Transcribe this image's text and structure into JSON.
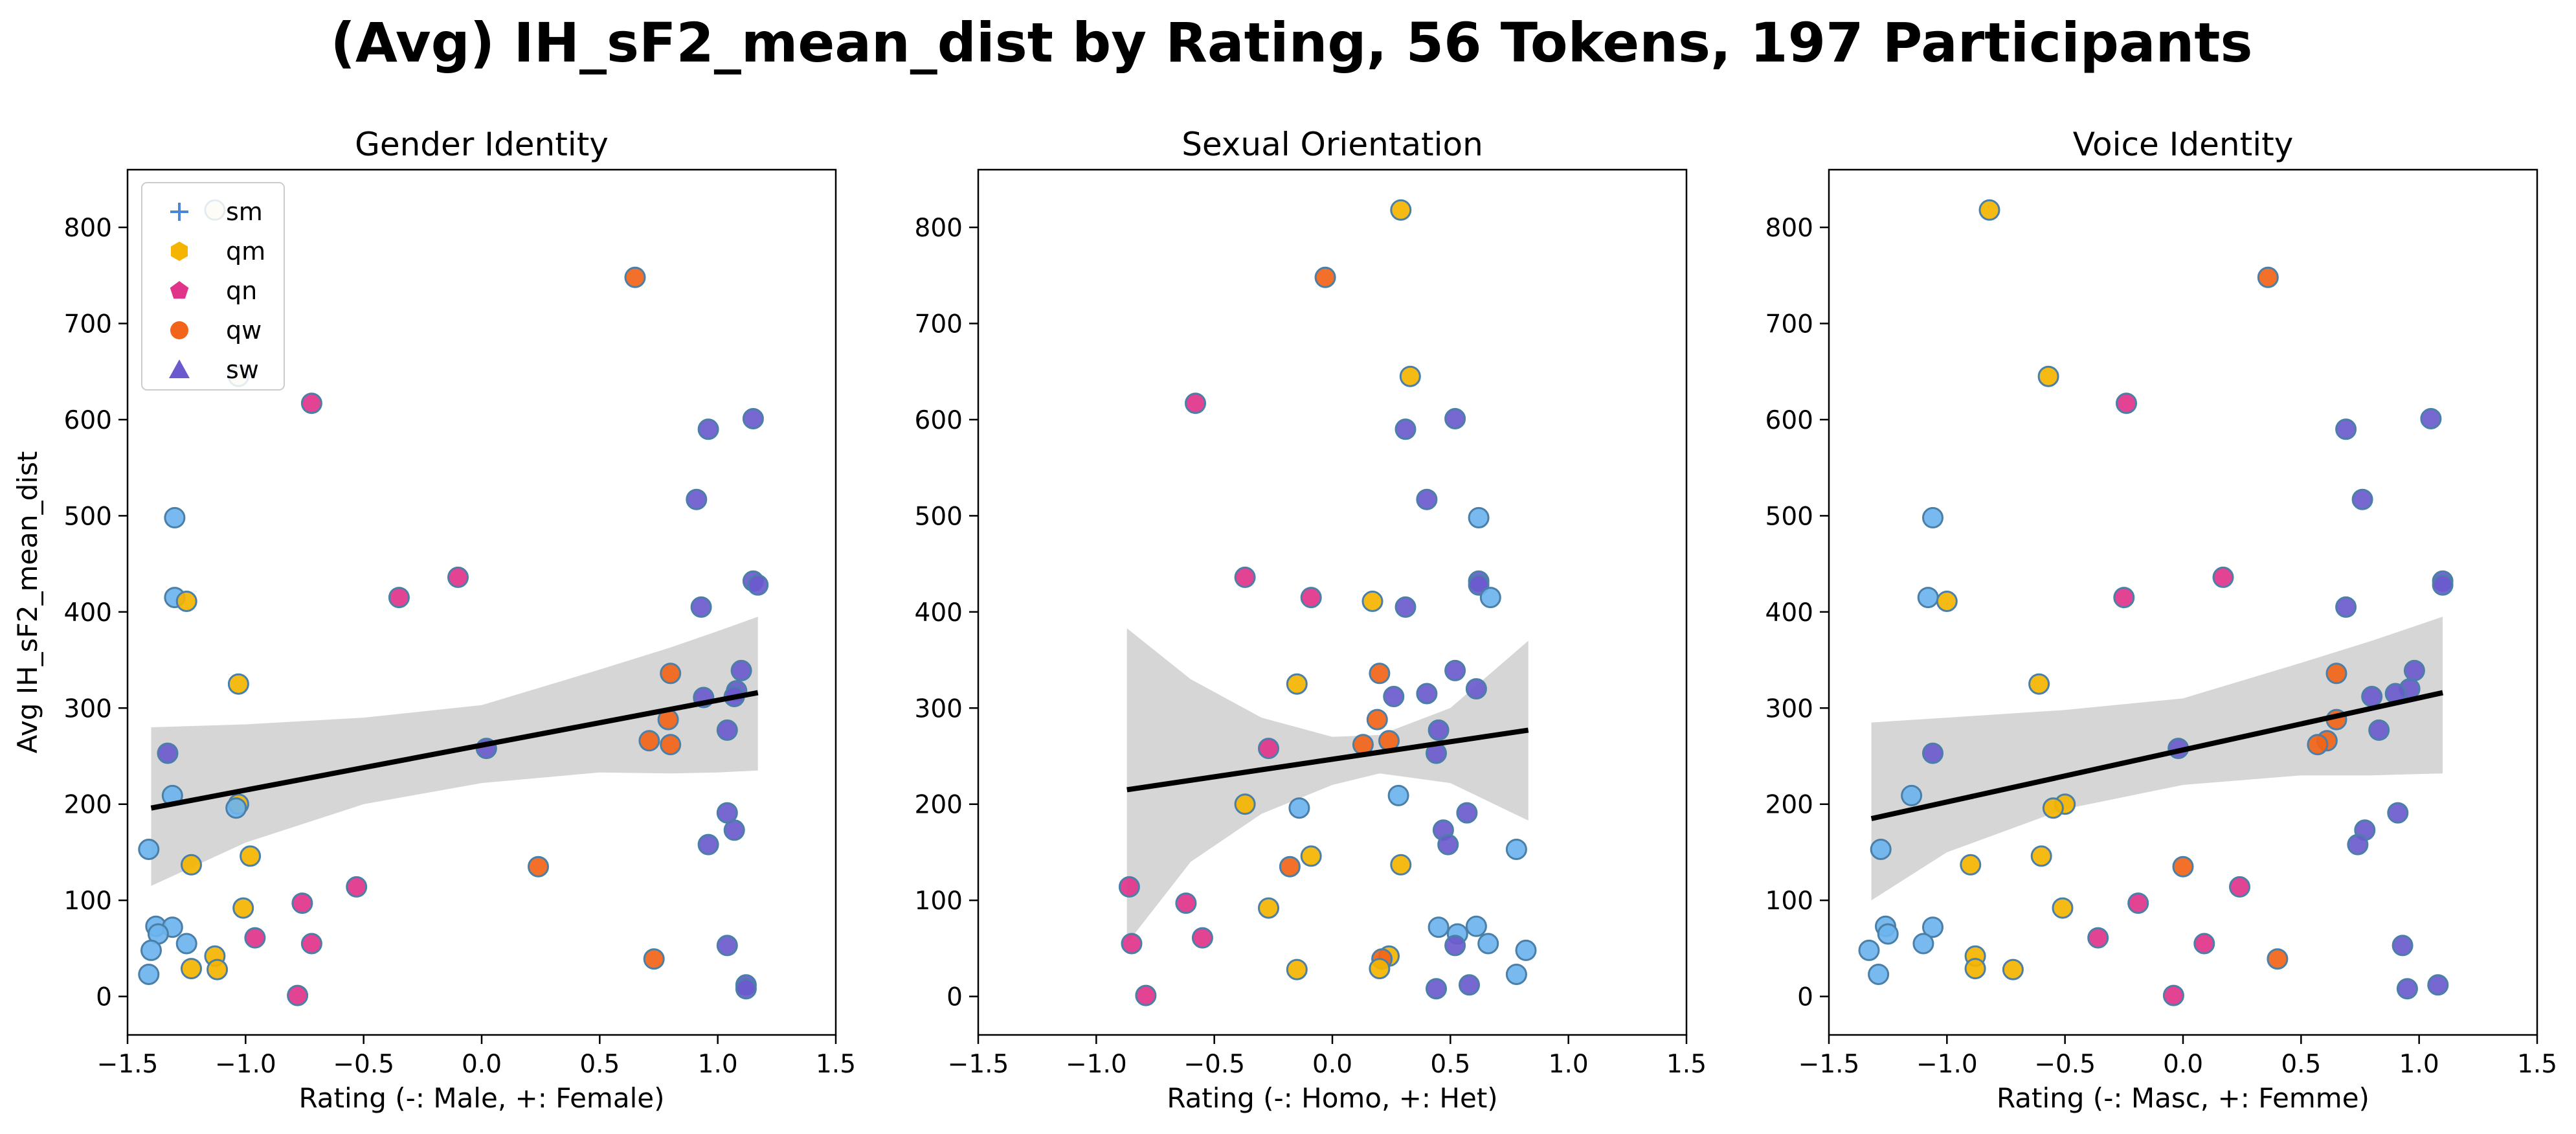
{
  "figure_title": "(Avg) IH_sF2_mean_dist by Rating, 56 Tokens, 197 Participants",
  "y_axis_label": "Avg IH_sF2_mean_dist",
  "legend": [
    {
      "label": "sm",
      "marker": "plus",
      "color": "#4a86d6"
    },
    {
      "label": "qm",
      "marker": "hexagon",
      "color": "#f4b400"
    },
    {
      "label": "qn",
      "marker": "pentagon",
      "color": "#e0338a"
    },
    {
      "label": "qw",
      "marker": "circle",
      "color": "#f26419"
    },
    {
      "label": "sw",
      "marker": "triangle",
      "color": "#6a5acd"
    }
  ],
  "point_edge_color": "#4a7fa8",
  "fit_line_color": "#000000",
  "ci_band_color": "#d6d6d6",
  "chart_data": [
    {
      "type": "scatter",
      "title": "Gender Identity",
      "xlabel": "Rating (-: Male, +: Female)",
      "ylabel": "Avg IH_sF2_mean_dist",
      "xlim": [
        -1.5,
        1.5
      ],
      "ylim": [
        -40,
        860
      ],
      "xticks": [
        -1.5,
        -1.0,
        -0.5,
        0.0,
        0.5,
        1.0,
        1.5
      ],
      "yticks": [
        0,
        100,
        200,
        300,
        400,
        500,
        600,
        700,
        800
      ],
      "legend_position": "upper-left",
      "fit": {
        "x": [
          -1.4,
          1.17
        ],
        "y": [
          196,
          316
        ]
      },
      "ci_band": {
        "x": [
          -1.4,
          -1.0,
          -0.5,
          0.0,
          0.5,
          0.8,
          1.0,
          1.17
        ],
        "upper": [
          280,
          283,
          290,
          303,
          340,
          363,
          380,
          395
        ],
        "lower": [
          115,
          160,
          200,
          222,
          233,
          232,
          233,
          235
        ]
      },
      "points": [
        {
          "x": -1.13,
          "y": 818,
          "color": "#f0e6c0"
        },
        {
          "x": -1.03,
          "y": 645,
          "color": "#f0e6c0"
        },
        {
          "x": 0.65,
          "y": 748,
          "color": "#f26419"
        },
        {
          "x": -0.72,
          "y": 617,
          "color": "#e0338a"
        },
        {
          "x": 0.96,
          "y": 590,
          "color": "#6a5acd"
        },
        {
          "x": 1.15,
          "y": 601,
          "color": "#6a5acd"
        },
        {
          "x": 0.91,
          "y": 517,
          "color": "#6a5acd"
        },
        {
          "x": -1.3,
          "y": 498,
          "color": "#6cb4ee"
        },
        {
          "x": -0.1,
          "y": 436,
          "color": "#e0338a"
        },
        {
          "x": -0.35,
          "y": 415,
          "color": "#e0338a"
        },
        {
          "x": -1.3,
          "y": 415,
          "color": "#6cb4ee"
        },
        {
          "x": -1.25,
          "y": 411,
          "color": "#f4b400"
        },
        {
          "x": 1.15,
          "y": 432,
          "color": "#6a5acd"
        },
        {
          "x": 1.17,
          "y": 428,
          "color": "#6a5acd"
        },
        {
          "x": 0.93,
          "y": 405,
          "color": "#6a5acd"
        },
        {
          "x": 0.8,
          "y": 336,
          "color": "#f26419"
        },
        {
          "x": 1.1,
          "y": 339,
          "color": "#6a5acd"
        },
        {
          "x": -1.03,
          "y": 325,
          "color": "#f4b400"
        },
        {
          "x": 0.94,
          "y": 311,
          "color": "#6a5acd"
        },
        {
          "x": 1.08,
          "y": 318,
          "color": "#6a5acd"
        },
        {
          "x": 1.07,
          "y": 312,
          "color": "#6a5acd"
        },
        {
          "x": 0.79,
          "y": 288,
          "color": "#f26419"
        },
        {
          "x": 1.04,
          "y": 277,
          "color": "#6a5acd"
        },
        {
          "x": 0.71,
          "y": 266,
          "color": "#f26419"
        },
        {
          "x": 0.8,
          "y": 262,
          "color": "#f26419"
        },
        {
          "x": 0.02,
          "y": 258,
          "color": "#6a5acd"
        },
        {
          "x": -1.33,
          "y": 253,
          "color": "#6a5acd"
        },
        {
          "x": -1.31,
          "y": 209,
          "color": "#6cb4ee"
        },
        {
          "x": -1.03,
          "y": 200,
          "color": "#f4b400"
        },
        {
          "x": -1.04,
          "y": 196,
          "color": "#6cb4ee"
        },
        {
          "x": 1.04,
          "y": 191,
          "color": "#6a5acd"
        },
        {
          "x": 1.07,
          "y": 173,
          "color": "#6a5acd"
        },
        {
          "x": 0.96,
          "y": 158,
          "color": "#6a5acd"
        },
        {
          "x": -1.41,
          "y": 153,
          "color": "#6cb4ee"
        },
        {
          "x": -0.98,
          "y": 146,
          "color": "#f4b400"
        },
        {
          "x": -1.23,
          "y": 137,
          "color": "#f4b400"
        },
        {
          "x": 0.24,
          "y": 135,
          "color": "#f26419"
        },
        {
          "x": -0.53,
          "y": 114,
          "color": "#e0338a"
        },
        {
          "x": -0.76,
          "y": 97,
          "color": "#e0338a"
        },
        {
          "x": -1.01,
          "y": 92,
          "color": "#f4b400"
        },
        {
          "x": -1.38,
          "y": 73,
          "color": "#6cb4ee"
        },
        {
          "x": -1.31,
          "y": 72,
          "color": "#6cb4ee"
        },
        {
          "x": -1.37,
          "y": 65,
          "color": "#6cb4ee"
        },
        {
          "x": -0.96,
          "y": 61,
          "color": "#e0338a"
        },
        {
          "x": -0.72,
          "y": 55,
          "color": "#e0338a"
        },
        {
          "x": -1.25,
          "y": 55,
          "color": "#6cb4ee"
        },
        {
          "x": 1.04,
          "y": 53,
          "color": "#6a5acd"
        },
        {
          "x": -1.4,
          "y": 48,
          "color": "#6cb4ee"
        },
        {
          "x": -1.13,
          "y": 42,
          "color": "#f4b400"
        },
        {
          "x": 0.73,
          "y": 39,
          "color": "#f26419"
        },
        {
          "x": -1.23,
          "y": 29,
          "color": "#f4b400"
        },
        {
          "x": -1.12,
          "y": 28,
          "color": "#f4b400"
        },
        {
          "x": -1.41,
          "y": 23,
          "color": "#6cb4ee"
        },
        {
          "x": 1.12,
          "y": 12,
          "color": "#6a5acd"
        },
        {
          "x": 1.12,
          "y": 8,
          "color": "#6a5acd"
        },
        {
          "x": -0.78,
          "y": 1,
          "color": "#e0338a"
        }
      ]
    },
    {
      "type": "scatter",
      "title": "Sexual Orientation",
      "xlabel": "Rating (-: Homo, +: Het)",
      "ylabel": "",
      "xlim": [
        -1.5,
        1.5
      ],
      "ylim": [
        -40,
        860
      ],
      "xticks": [
        -1.5,
        -1.0,
        -0.5,
        0.0,
        0.5,
        1.0,
        1.5
      ],
      "yticks": [
        0,
        100,
        200,
        300,
        400,
        500,
        600,
        700,
        800
      ],
      "fit": {
        "x": [
          -0.87,
          0.83
        ],
        "y": [
          215,
          277
        ]
      },
      "ci_band": {
        "x": [
          -0.87,
          -0.6,
          -0.3,
          0.0,
          0.2,
          0.5,
          0.83
        ],
        "upper": [
          383,
          330,
          290,
          270,
          272,
          300,
          370
        ],
        "lower": [
          55,
          140,
          190,
          220,
          232,
          222,
          183
        ]
      },
      "points": [
        {
          "x": 0.29,
          "y": 818,
          "color": "#f4b400"
        },
        {
          "x": -0.03,
          "y": 748,
          "color": "#f26419"
        },
        {
          "x": 0.33,
          "y": 645,
          "color": "#f4b400"
        },
        {
          "x": -0.58,
          "y": 617,
          "color": "#e0338a"
        },
        {
          "x": 0.52,
          "y": 601,
          "color": "#6a5acd"
        },
        {
          "x": 0.31,
          "y": 590,
          "color": "#6a5acd"
        },
        {
          "x": 0.4,
          "y": 517,
          "color": "#6a5acd"
        },
        {
          "x": 0.62,
          "y": 498,
          "color": "#6cb4ee"
        },
        {
          "x": -0.37,
          "y": 436,
          "color": "#e0338a"
        },
        {
          "x": 0.62,
          "y": 432,
          "color": "#6a5acd"
        },
        {
          "x": 0.62,
          "y": 428,
          "color": "#6a5acd"
        },
        {
          "x": 0.67,
          "y": 415,
          "color": "#6cb4ee"
        },
        {
          "x": -0.09,
          "y": 415,
          "color": "#e0338a"
        },
        {
          "x": 0.17,
          "y": 411,
          "color": "#f4b400"
        },
        {
          "x": 0.31,
          "y": 405,
          "color": "#6a5acd"
        },
        {
          "x": 0.52,
          "y": 339,
          "color": "#6a5acd"
        },
        {
          "x": 0.2,
          "y": 336,
          "color": "#f26419"
        },
        {
          "x": -0.15,
          "y": 325,
          "color": "#f4b400"
        },
        {
          "x": 0.61,
          "y": 320,
          "color": "#6a5acd"
        },
        {
          "x": 0.4,
          "y": 315,
          "color": "#6a5acd"
        },
        {
          "x": 0.26,
          "y": 312,
          "color": "#6a5acd"
        },
        {
          "x": 0.19,
          "y": 288,
          "color": "#f26419"
        },
        {
          "x": 0.45,
          "y": 277,
          "color": "#6a5acd"
        },
        {
          "x": 0.24,
          "y": 266,
          "color": "#f26419"
        },
        {
          "x": 0.13,
          "y": 262,
          "color": "#f26419"
        },
        {
          "x": -0.27,
          "y": 258,
          "color": "#e0338a"
        },
        {
          "x": 0.44,
          "y": 253,
          "color": "#6a5acd"
        },
        {
          "x": 0.28,
          "y": 209,
          "color": "#6cb4ee"
        },
        {
          "x": -0.37,
          "y": 200,
          "color": "#f4b400"
        },
        {
          "x": -0.14,
          "y": 196,
          "color": "#6cb4ee"
        },
        {
          "x": 0.57,
          "y": 191,
          "color": "#6a5acd"
        },
        {
          "x": 0.47,
          "y": 173,
          "color": "#6a5acd"
        },
        {
          "x": 0.49,
          "y": 158,
          "color": "#6a5acd"
        },
        {
          "x": 0.78,
          "y": 153,
          "color": "#6cb4ee"
        },
        {
          "x": -0.09,
          "y": 146,
          "color": "#f4b400"
        },
        {
          "x": 0.29,
          "y": 137,
          "color": "#f4b400"
        },
        {
          "x": -0.18,
          "y": 135,
          "color": "#f26419"
        },
        {
          "x": -0.86,
          "y": 114,
          "color": "#e0338a"
        },
        {
          "x": -0.62,
          "y": 97,
          "color": "#e0338a"
        },
        {
          "x": -0.27,
          "y": 92,
          "color": "#f4b400"
        },
        {
          "x": 0.61,
          "y": 73,
          "color": "#6cb4ee"
        },
        {
          "x": 0.45,
          "y": 72,
          "color": "#6cb4ee"
        },
        {
          "x": 0.53,
          "y": 65,
          "color": "#6cb4ee"
        },
        {
          "x": -0.55,
          "y": 61,
          "color": "#e0338a"
        },
        {
          "x": 0.66,
          "y": 55,
          "color": "#6cb4ee"
        },
        {
          "x": -0.85,
          "y": 55,
          "color": "#e0338a"
        },
        {
          "x": 0.52,
          "y": 53,
          "color": "#6a5acd"
        },
        {
          "x": 0.82,
          "y": 48,
          "color": "#6cb4ee"
        },
        {
          "x": 0.24,
          "y": 42,
          "color": "#f4b400"
        },
        {
          "x": 0.21,
          "y": 39,
          "color": "#f26419"
        },
        {
          "x": 0.2,
          "y": 29,
          "color": "#f4b400"
        },
        {
          "x": -0.15,
          "y": 28,
          "color": "#f4b400"
        },
        {
          "x": 0.78,
          "y": 23,
          "color": "#6cb4ee"
        },
        {
          "x": 0.58,
          "y": 12,
          "color": "#6a5acd"
        },
        {
          "x": 0.44,
          "y": 8,
          "color": "#6a5acd"
        },
        {
          "x": -0.79,
          "y": 1,
          "color": "#e0338a"
        }
      ]
    },
    {
      "type": "scatter",
      "title": "Voice Identity",
      "xlabel": "Rating (-: Masc, +: Femme)",
      "ylabel": "",
      "xlim": [
        -1.5,
        1.5
      ],
      "ylim": [
        -40,
        860
      ],
      "xticks": [
        -1.5,
        -1.0,
        -0.5,
        0.0,
        0.5,
        1.0,
        1.5
      ],
      "yticks": [
        0,
        100,
        200,
        300,
        400,
        500,
        600,
        700,
        800
      ],
      "fit": {
        "x": [
          -1.32,
          1.1
        ],
        "y": [
          185,
          316
        ]
      },
      "ci_band": {
        "x": [
          -1.32,
          -1.0,
          -0.5,
          0.0,
          0.5,
          0.8,
          1.1
        ],
        "upper": [
          285,
          290,
          298,
          310,
          347,
          370,
          395
        ],
        "lower": [
          100,
          150,
          195,
          220,
          230,
          230,
          232
        ]
      },
      "points": [
        {
          "x": -0.82,
          "y": 818,
          "color": "#f4b400"
        },
        {
          "x": 0.36,
          "y": 748,
          "color": "#f26419"
        },
        {
          "x": -0.57,
          "y": 645,
          "color": "#f4b400"
        },
        {
          "x": -0.24,
          "y": 617,
          "color": "#e0338a"
        },
        {
          "x": 1.05,
          "y": 601,
          "color": "#6a5acd"
        },
        {
          "x": 0.69,
          "y": 590,
          "color": "#6a5acd"
        },
        {
          "x": 0.76,
          "y": 517,
          "color": "#6a5acd"
        },
        {
          "x": -1.06,
          "y": 498,
          "color": "#6cb4ee"
        },
        {
          "x": 0.17,
          "y": 436,
          "color": "#e0338a"
        },
        {
          "x": 1.1,
          "y": 432,
          "color": "#6a5acd"
        },
        {
          "x": 1.1,
          "y": 428,
          "color": "#6a5acd"
        },
        {
          "x": -1.08,
          "y": 415,
          "color": "#6cb4ee"
        },
        {
          "x": -0.25,
          "y": 415,
          "color": "#e0338a"
        },
        {
          "x": -1.0,
          "y": 411,
          "color": "#f4b400"
        },
        {
          "x": 0.69,
          "y": 405,
          "color": "#6a5acd"
        },
        {
          "x": 0.98,
          "y": 339,
          "color": "#6a5acd"
        },
        {
          "x": 0.65,
          "y": 336,
          "color": "#f26419"
        },
        {
          "x": -0.61,
          "y": 325,
          "color": "#f4b400"
        },
        {
          "x": 0.96,
          "y": 320,
          "color": "#6a5acd"
        },
        {
          "x": 0.9,
          "y": 315,
          "color": "#6a5acd"
        },
        {
          "x": 0.8,
          "y": 312,
          "color": "#6a5acd"
        },
        {
          "x": 0.65,
          "y": 288,
          "color": "#f26419"
        },
        {
          "x": 0.83,
          "y": 277,
          "color": "#6a5acd"
        },
        {
          "x": 0.61,
          "y": 266,
          "color": "#f26419"
        },
        {
          "x": 0.57,
          "y": 262,
          "color": "#f26419"
        },
        {
          "x": -0.02,
          "y": 258,
          "color": "#6a5acd"
        },
        {
          "x": -1.06,
          "y": 253,
          "color": "#6a5acd"
        },
        {
          "x": -1.15,
          "y": 209,
          "color": "#6cb4ee"
        },
        {
          "x": -0.5,
          "y": 200,
          "color": "#f4b400"
        },
        {
          "x": -0.55,
          "y": 196,
          "color": "#f4b400"
        },
        {
          "x": 0.91,
          "y": 191,
          "color": "#6a5acd"
        },
        {
          "x": 0.77,
          "y": 173,
          "color": "#6a5acd"
        },
        {
          "x": 0.74,
          "y": 158,
          "color": "#6a5acd"
        },
        {
          "x": -1.28,
          "y": 153,
          "color": "#6cb4ee"
        },
        {
          "x": -0.6,
          "y": 146,
          "color": "#f4b400"
        },
        {
          "x": -0.9,
          "y": 137,
          "color": "#f4b400"
        },
        {
          "x": 0.0,
          "y": 135,
          "color": "#f26419"
        },
        {
          "x": 0.24,
          "y": 114,
          "color": "#e0338a"
        },
        {
          "x": -0.19,
          "y": 97,
          "color": "#e0338a"
        },
        {
          "x": -0.51,
          "y": 92,
          "color": "#f4b400"
        },
        {
          "x": -1.26,
          "y": 73,
          "color": "#6cb4ee"
        },
        {
          "x": -1.06,
          "y": 72,
          "color": "#6cb4ee"
        },
        {
          "x": -1.25,
          "y": 65,
          "color": "#6cb4ee"
        },
        {
          "x": -0.36,
          "y": 61,
          "color": "#e0338a"
        },
        {
          "x": -1.1,
          "y": 55,
          "color": "#6cb4ee"
        },
        {
          "x": 0.09,
          "y": 55,
          "color": "#e0338a"
        },
        {
          "x": 0.93,
          "y": 53,
          "color": "#6a5acd"
        },
        {
          "x": -1.33,
          "y": 48,
          "color": "#6cb4ee"
        },
        {
          "x": -0.88,
          "y": 42,
          "color": "#f4b400"
        },
        {
          "x": 0.4,
          "y": 39,
          "color": "#f26419"
        },
        {
          "x": -0.88,
          "y": 29,
          "color": "#f4b400"
        },
        {
          "x": -0.72,
          "y": 28,
          "color": "#f4b400"
        },
        {
          "x": -1.29,
          "y": 23,
          "color": "#6cb4ee"
        },
        {
          "x": 1.08,
          "y": 12,
          "color": "#6a5acd"
        },
        {
          "x": 0.95,
          "y": 8,
          "color": "#6a5acd"
        },
        {
          "x": -0.04,
          "y": 1,
          "color": "#e0338a"
        }
      ]
    }
  ]
}
